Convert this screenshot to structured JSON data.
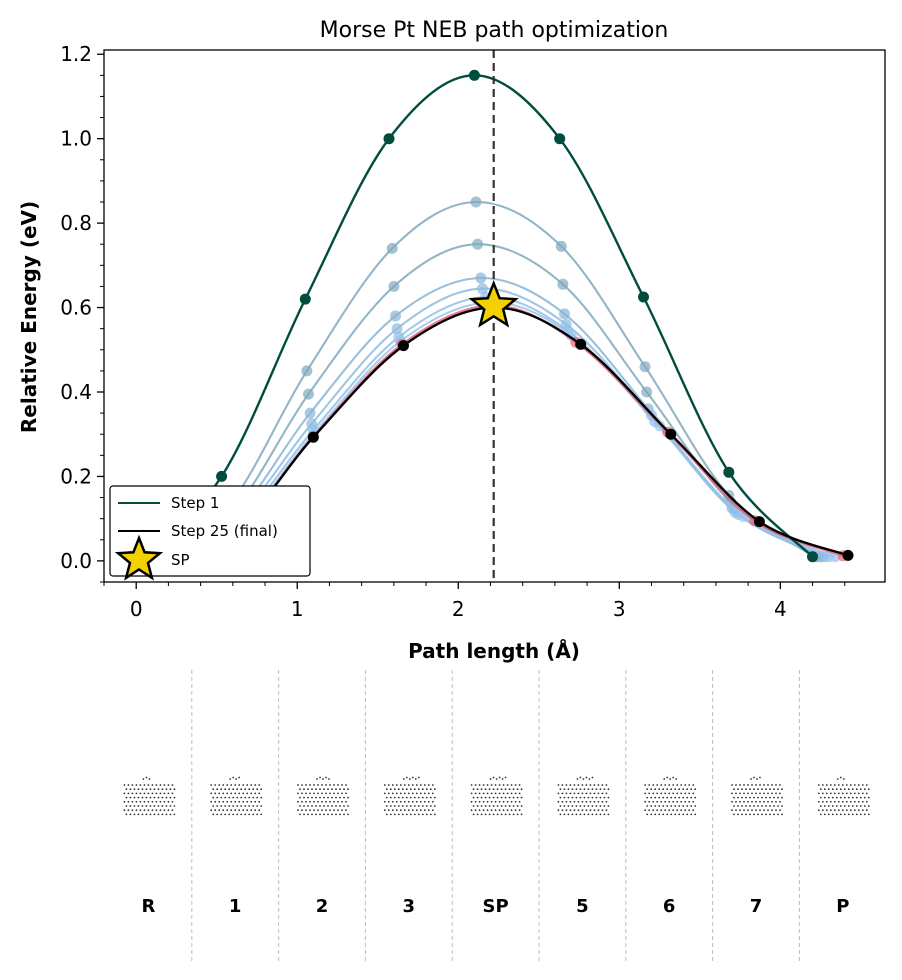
{
  "chart_data": {
    "type": "line",
    "title": "Morse Pt NEB path optimization",
    "xlabel": "Path length (Å)",
    "ylabel": "Relative Energy (eV)",
    "xlim": [
      -0.2,
      4.65
    ],
    "ylim": [
      -0.05,
      1.21
    ],
    "xticks": [
      0,
      1,
      2,
      3,
      4
    ],
    "yticks": [
      0.0,
      0.2,
      0.4,
      0.6,
      0.8,
      1.0,
      1.2
    ],
    "grid": false,
    "legend_position": "lower-left",
    "saddle_x": 2.22,
    "series": [
      {
        "name": "Step 1",
        "color": "#004d40",
        "role": "first",
        "x": [
          0.0,
          0.53,
          1.05,
          1.57,
          2.1,
          2.63,
          3.15,
          3.68,
          4.2
        ],
        "y": [
          0.0,
          0.2,
          0.62,
          1.0,
          1.15,
          1.0,
          0.625,
          0.21,
          0.01
        ]
      },
      {
        "color": "#7fa8bd",
        "role": "intermediate",
        "x": [
          0.0,
          0.55,
          1.06,
          1.59,
          2.11,
          2.64,
          3.16,
          3.68,
          4.21
        ],
        "y": [
          0.0,
          0.12,
          0.45,
          0.74,
          0.85,
          0.745,
          0.46,
          0.155,
          0.01
        ]
      },
      {
        "color": "#7fa8bd",
        "role": "intermediate",
        "x": [
          0.0,
          0.56,
          1.07,
          1.6,
          2.12,
          2.65,
          3.17,
          3.69,
          4.23
        ],
        "y": [
          0.0,
          0.1,
          0.395,
          0.65,
          0.75,
          0.655,
          0.4,
          0.14,
          0.01
        ]
      },
      {
        "color": "#88b4d4",
        "role": "intermediate",
        "x": [
          0.0,
          0.57,
          1.08,
          1.61,
          2.14,
          2.66,
          3.18,
          3.7,
          4.25
        ],
        "y": [
          0.0,
          0.09,
          0.35,
          0.58,
          0.67,
          0.585,
          0.36,
          0.125,
          0.01
        ]
      },
      {
        "color": "#8cbbe0",
        "role": "intermediate",
        "x": [
          0.0,
          0.58,
          1.09,
          1.62,
          2.15,
          2.67,
          3.2,
          3.72,
          4.27
        ],
        "y": [
          0.0,
          0.085,
          0.325,
          0.55,
          0.645,
          0.56,
          0.345,
          0.115,
          0.01
        ]
      },
      {
        "color": "#92bfe8",
        "role": "intermediate",
        "x": [
          0.0,
          0.59,
          1.1,
          1.63,
          2.17,
          2.68,
          3.22,
          3.74,
          4.3
        ],
        "y": [
          0.0,
          0.08,
          0.31,
          0.53,
          0.625,
          0.545,
          0.33,
          0.11,
          0.01
        ]
      },
      {
        "color": "#9ac4ec",
        "role": "intermediate",
        "x": [
          0.0,
          0.6,
          1.1,
          1.64,
          2.19,
          2.7,
          3.25,
          3.77,
          4.34
        ],
        "y": [
          0.0,
          0.075,
          0.3,
          0.52,
          0.612,
          0.535,
          0.32,
          0.105,
          0.01
        ]
      },
      {
        "color": "#e8607a",
        "role": "intermediate",
        "x": [
          0.0,
          0.6,
          1.1,
          1.65,
          2.21,
          2.73,
          3.3,
          3.84,
          4.39
        ],
        "y": [
          0.0,
          0.072,
          0.295,
          0.513,
          0.605,
          0.518,
          0.305,
          0.095,
          0.012
        ]
      },
      {
        "name": "Step 25 (final)",
        "color": "#000000",
        "role": "final",
        "x": [
          0.0,
          0.6,
          1.1,
          1.66,
          2.22,
          2.76,
          3.32,
          3.87,
          4.42
        ],
        "y": [
          0.0,
          0.07,
          0.293,
          0.51,
          0.6,
          0.513,
          0.3,
          0.093,
          0.013
        ]
      },
      {
        "name": "SP",
        "type": "marker",
        "color": "#f5d000",
        "x": [
          2.22
        ],
        "y": [
          0.603
        ]
      }
    ],
    "image_labels": [
      "R",
      "1",
      "2",
      "3",
      "SP",
      "5",
      "6",
      "7",
      "P"
    ]
  }
}
